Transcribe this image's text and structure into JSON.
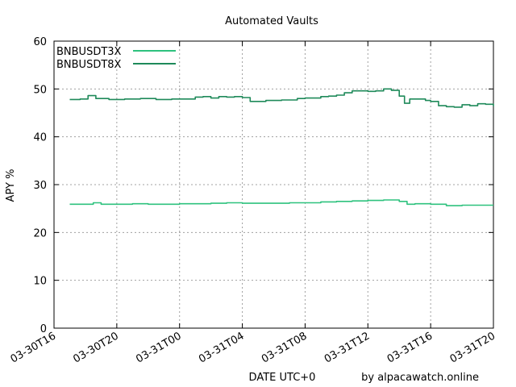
{
  "chart_data": {
    "type": "line",
    "title": "Automated Vaults",
    "xlabel": "DATE UTC+0",
    "ylabel": "APY %",
    "credit": "by alpacawatch.online",
    "grid": true,
    "legend_position": "top-left",
    "xlim": [
      "03-30T16",
      "03-31T20"
    ],
    "ylim": [
      0,
      60
    ],
    "y_ticks": [
      0,
      10,
      20,
      30,
      40,
      50,
      60
    ],
    "x_ticks": [
      "03-30T16",
      "03-30T20",
      "03-31T00",
      "03-31T04",
      "03-31T08",
      "03-31T12",
      "03-31T16",
      "03-31T20"
    ],
    "series": [
      {
        "name": "BNBUSDT3X",
        "color": "#2ec27e",
        "x": [
          "03-30T17:00",
          "03-30T18:00",
          "03-30T18:30",
          "03-30T19:00",
          "03-30T20:00",
          "03-30T21:00",
          "03-30T22:00",
          "03-30T23:00",
          "03-31T00:00",
          "03-31T01:00",
          "03-31T02:00",
          "03-31T03:00",
          "03-31T04:00",
          "03-31T05:00",
          "03-31T06:00",
          "03-31T07:00",
          "03-31T08:00",
          "03-31T09:00",
          "03-31T10:00",
          "03-31T11:00",
          "03-31T12:00",
          "03-31T13:00",
          "03-31T14:00",
          "03-31T14:30",
          "03-31T15:00",
          "03-31T16:00",
          "03-31T17:00",
          "03-31T18:00",
          "03-31T19:00",
          "03-31T20:00"
        ],
        "y": [
          25.9,
          25.9,
          26.2,
          25.9,
          25.9,
          26.0,
          25.9,
          25.9,
          26.0,
          26.0,
          26.1,
          26.2,
          26.1,
          26.1,
          26.1,
          26.2,
          26.2,
          26.4,
          26.5,
          26.6,
          26.7,
          26.8,
          26.5,
          25.9,
          26.0,
          25.9,
          25.6,
          25.7,
          25.7,
          25.7
        ]
      },
      {
        "name": "BNBUSDT8X",
        "color": "#1f8a5a",
        "x": [
          "03-30T17:00",
          "03-30T17:40",
          "03-30T18:10",
          "03-30T18:40",
          "03-30T19:30",
          "03-30T20:30",
          "03-30T21:30",
          "03-30T22:30",
          "03-30T23:30",
          "03-31T00:30",
          "03-31T01:00",
          "03-31T01:30",
          "03-31T02:00",
          "03-31T02:30",
          "03-31T03:00",
          "03-31T03:30",
          "03-31T04:00",
          "03-31T04:30",
          "03-31T05:30",
          "03-31T06:30",
          "03-31T07:30",
          "03-31T08:00",
          "03-31T09:00",
          "03-31T09:30",
          "03-31T10:00",
          "03-31T10:30",
          "03-31T11:00",
          "03-31T12:00",
          "03-31T12:30",
          "03-31T13:00",
          "03-31T13:30",
          "03-31T14:00",
          "03-31T14:20",
          "03-31T14:40",
          "03-31T15:00",
          "03-31T15:40",
          "03-31T16:00",
          "03-31T16:30",
          "03-31T17:00",
          "03-31T17:30",
          "03-31T18:00",
          "03-31T18:30",
          "03-31T19:00",
          "03-31T19:30",
          "03-31T20:00"
        ],
        "y": [
          47.8,
          47.9,
          48.6,
          48.0,
          47.8,
          47.9,
          48.0,
          47.8,
          47.9,
          47.9,
          48.3,
          48.4,
          48.1,
          48.4,
          48.3,
          48.4,
          48.2,
          47.4,
          47.6,
          47.7,
          48.0,
          48.1,
          48.4,
          48.5,
          48.7,
          49.2,
          49.6,
          49.5,
          49.6,
          50.0,
          49.7,
          48.5,
          47.0,
          47.9,
          47.9,
          47.6,
          47.4,
          46.5,
          46.3,
          46.2,
          46.7,
          46.5,
          46.9,
          46.8,
          46.4
        ]
      }
    ]
  }
}
